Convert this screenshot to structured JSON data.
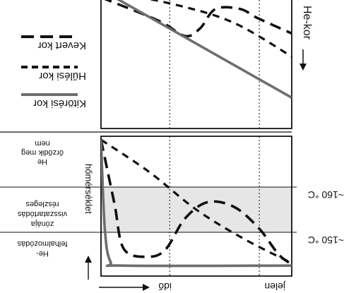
{
  "chart_data": [
    {
      "type": "line",
      "panel": "top",
      "ylabel": "He-kor",
      "ylabel_arrow": "up",
      "legend": {
        "placement": "left",
        "entries": [
          {
            "name": "Kevert kor",
            "style": "long-dash",
            "color": "#111111"
          },
          {
            "name": "Hűlési kor",
            "style": "short-dash",
            "color": "#111111"
          },
          {
            "name": "Kitörési kor",
            "style": "solid",
            "color": "#6e6e6e"
          }
        ]
      },
      "grid": "vertical-dotted",
      "x_markers": [
        0.36,
        0.83
      ],
      "xlim": [
        0,
        1
      ],
      "ylim": [
        0,
        1
      ],
      "series": [
        {
          "name": "Kevert kor",
          "points": [
            [
              0,
              1.02
            ],
            [
              0.3,
              0.84
            ],
            [
              0.44,
              0.72
            ],
            [
              0.52,
              0.78
            ],
            [
              0.6,
              0.93
            ],
            [
              0.73,
              0.93
            ],
            [
              0.82,
              0.86
            ],
            [
              1,
              0.74
            ]
          ]
        },
        {
          "name": "Hűlési kor",
          "points": [
            [
              0,
              1.08
            ],
            [
              0.4,
              0.96
            ],
            [
              0.7,
              0.82
            ],
            [
              1,
              0.56
            ]
          ]
        },
        {
          "name": "Kitörési kor",
          "points": [
            [
              0,
              1.08
            ],
            [
              1,
              0.24
            ]
          ]
        }
      ]
    },
    {
      "type": "line",
      "panel": "bottom",
      "xlabel": "idő",
      "x_end_label": "jelen",
      "ylabel": "hőmérséklet",
      "zone_labels": [
        "He\nőrződik meg\nnem",
        "zónája\nvisszatartódás\nrészleges",
        "He-\nfelhalmozódás"
      ],
      "temperature_ticks": [
        "~160 °C",
        "~150 °C"
      ],
      "shaded_band": {
        "from": "~150 °C",
        "to": "~160 °C",
        "color": "#e6e6e6"
      },
      "grid": "vertical-dotted",
      "x_markers": [
        0.36,
        0.83
      ],
      "xlim": [
        0,
        1
      ],
      "ylim": [
        0,
        1
      ],
      "series": [
        {
          "name": "Kevert kor",
          "points": [
            [
              0,
              1.0
            ],
            [
              0.07,
              0.5
            ],
            [
              0.12,
              0.14
            ],
            [
              0.25,
              0.08
            ],
            [
              0.34,
              0.14
            ],
            [
              0.44,
              0.38
            ],
            [
              0.56,
              0.51
            ],
            [
              0.7,
              0.47
            ],
            [
              0.83,
              0.3
            ],
            [
              0.93,
              0.1
            ],
            [
              1,
              0.02
            ]
          ]
        },
        {
          "name": "Hűlési kor",
          "points": [
            [
              0,
              1.0
            ],
            [
              0.25,
              0.75
            ],
            [
              0.5,
              0.45
            ],
            [
              0.75,
              0.22
            ],
            [
              1,
              0.03
            ]
          ]
        },
        {
          "name": "Kitörési kor",
          "points": [
            [
              0,
              1.0
            ],
            [
              0.02,
              0.3
            ],
            [
              0.05,
              0.04
            ],
            [
              0.12,
              0.01
            ],
            [
              1,
              0.01
            ]
          ]
        }
      ]
    }
  ]
}
